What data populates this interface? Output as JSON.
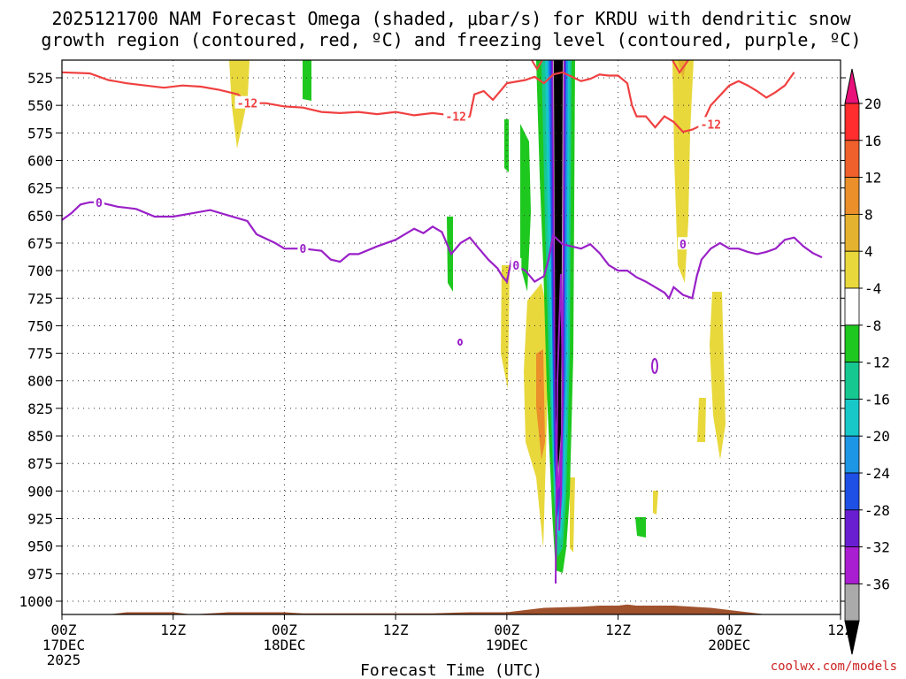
{
  "chart_data": {
    "type": "time-pressure contour/shaded",
    "title": [
      "2025121700 NAM Forecast Omega (shaded, μbar/s) for KRDU with dendritic snow",
      "growth region (contoured, red, ºC) and freezing level (contoured, purple, ºC)"
    ],
    "xlabel": "Forecast Time (UTC)",
    "credit": "coolwx.com/models",
    "x_ticks": [
      {
        "h": 0,
        "l1": "00Z",
        "l2": "17DEC",
        "l3": "2025"
      },
      {
        "h": 12,
        "l1": "12Z",
        "l2": "",
        "l3": ""
      },
      {
        "h": 24,
        "l1": "00Z",
        "l2": "18DEC",
        "l3": ""
      },
      {
        "h": 36,
        "l1": "12Z",
        "l2": "",
        "l3": ""
      },
      {
        "h": 48,
        "l1": "00Z",
        "l2": "19DEC",
        "l3": ""
      },
      {
        "h": 60,
        "l1": "12Z",
        "l2": "",
        "l3": ""
      },
      {
        "h": 72,
        "l1": "00Z",
        "l2": "20DEC",
        "l3": ""
      },
      {
        "h": 84,
        "l1": "12Z",
        "l2": "",
        "l3": ""
      }
    ],
    "y_ticks": [
      525,
      550,
      575,
      600,
      625,
      650,
      675,
      700,
      725,
      750,
      775,
      800,
      825,
      850,
      875,
      900,
      925,
      950,
      975,
      1000
    ],
    "colorbar": {
      "labels": [
        "20",
        "16",
        "12",
        "8",
        "4",
        "-4",
        "-8",
        "-12",
        "-16",
        "-20",
        "-24",
        "-28",
        "-32",
        "-36"
      ],
      "colors": [
        "#ff2d2d",
        "#f0602c",
        "#ea8f2a",
        "#e4b22e",
        "#e8d83c",
        "#ffffff",
        "#1ec81e",
        "#16c890",
        "#18c8c8",
        "#1e96e6",
        "#1e50e6",
        "#6a1ed2",
        "#aa1ed2",
        "#aaaaaa"
      ],
      "top_color": "#e8127a",
      "bottom_color": "#000000"
    },
    "contour_labels": {
      "dgz": "-12",
      "freezing": "0"
    },
    "dgz_line": [
      [
        0,
        520
      ],
      [
        3,
        521
      ],
      [
        5,
        527
      ],
      [
        7,
        530
      ],
      [
        9,
        532
      ],
      [
        11,
        534
      ],
      [
        13,
        532
      ],
      [
        15,
        533
      ],
      [
        17,
        536
      ],
      [
        19,
        540
      ],
      [
        20,
        548
      ],
      [
        22,
        548
      ],
      [
        24,
        551
      ],
      [
        26,
        552
      ],
      [
        28,
        556
      ],
      [
        30,
        557
      ],
      [
        32,
        556
      ],
      [
        34,
        558
      ],
      [
        36,
        556
      ],
      [
        38,
        559
      ],
      [
        40,
        557
      ],
      [
        42,
        559
      ],
      [
        43,
        563
      ],
      [
        44,
        560
      ],
      [
        44.5,
        540
      ],
      [
        45.5,
        537
      ],
      [
        46.5,
        545
      ],
      [
        47,
        540
      ],
      [
        48,
        530
      ],
      [
        50,
        527
      ],
      [
        51,
        524
      ],
      [
        52,
        530
      ],
      [
        53,
        522
      ],
      [
        54,
        520
      ],
      [
        56,
        528
      ],
      [
        57,
        526
      ],
      [
        58,
        522
      ],
      [
        59,
        523
      ],
      [
        60,
        523
      ],
      [
        61,
        530
      ],
      [
        61.5,
        550
      ],
      [
        62,
        560
      ],
      [
        63,
        560
      ],
      [
        64,
        570
      ],
      [
        65,
        560
      ],
      [
        66,
        565
      ],
      [
        67,
        574
      ],
      [
        68,
        572
      ],
      [
        69,
        568
      ],
      [
        70,
        550
      ],
      [
        72,
        532
      ],
      [
        73,
        528
      ],
      [
        74,
        532
      ],
      [
        75,
        537
      ],
      [
        76,
        543
      ],
      [
        77,
        538
      ],
      [
        78,
        532
      ],
      [
        79,
        520
      ]
    ],
    "frz_line": [
      [
        0,
        654
      ],
      [
        1,
        648
      ],
      [
        2,
        640
      ],
      [
        3,
        638
      ],
      [
        4,
        638
      ],
      [
        6,
        642
      ],
      [
        8,
        644
      ],
      [
        10,
        651
      ],
      [
        12,
        651
      ],
      [
        14,
        648
      ],
      [
        16,
        645
      ],
      [
        18,
        650
      ],
      [
        20,
        655
      ],
      [
        21,
        667
      ],
      [
        23,
        675
      ],
      [
        24,
        680
      ],
      [
        26,
        680
      ],
      [
        28,
        682
      ],
      [
        29,
        690
      ],
      [
        30,
        692
      ],
      [
        31,
        685
      ],
      [
        32,
        685
      ],
      [
        34,
        678
      ],
      [
        36,
        672
      ],
      [
        38,
        662
      ],
      [
        39,
        666
      ],
      [
        40,
        660
      ],
      [
        41,
        665
      ],
      [
        42,
        685
      ],
      [
        43,
        675
      ],
      [
        44,
        670
      ],
      [
        45,
        680
      ],
      [
        46,
        690
      ],
      [
        47,
        698
      ],
      [
        47.5,
        705
      ],
      [
        48,
        710
      ],
      [
        48.5,
        690
      ],
      [
        49,
        696
      ],
      [
        50,
        700
      ],
      [
        51,
        710
      ],
      [
        52,
        705
      ],
      [
        52.5,
        690
      ],
      [
        53,
        668
      ],
      [
        54,
        676
      ],
      [
        55,
        678
      ],
      [
        56,
        680
      ],
      [
        57,
        676
      ],
      [
        58,
        684
      ],
      [
        59,
        695
      ],
      [
        60,
        700
      ],
      [
        61,
        700
      ],
      [
        62,
        706
      ],
      [
        63,
        710
      ],
      [
        64,
        715
      ],
      [
        65,
        720
      ],
      [
        65.5,
        725
      ],
      [
        66,
        715
      ],
      [
        67,
        722
      ],
      [
        68,
        725
      ],
      [
        68.5,
        705
      ],
      [
        69,
        690
      ],
      [
        70,
        680
      ],
      [
        71,
        675
      ],
      [
        72,
        680
      ],
      [
        73,
        680
      ],
      [
        74,
        683
      ],
      [
        75,
        685
      ],
      [
        76,
        683
      ],
      [
        77,
        680
      ],
      [
        78,
        672
      ],
      [
        79,
        670
      ],
      [
        80,
        678
      ],
      [
        81,
        684
      ],
      [
        82,
        688
      ]
    ],
    "terrain_top": [
      [
        0,
        1012
      ],
      [
        5,
        1012
      ],
      [
        7,
        1010
      ],
      [
        12,
        1010
      ],
      [
        14,
        1012
      ],
      [
        16,
        1011
      ],
      [
        18,
        1010
      ],
      [
        24,
        1010
      ],
      [
        26,
        1011
      ],
      [
        34,
        1011
      ],
      [
        40,
        1011
      ],
      [
        44,
        1010
      ],
      [
        48,
        1010
      ],
      [
        50,
        1008
      ],
      [
        52,
        1006
      ],
      [
        56,
        1005
      ],
      [
        58,
        1004
      ],
      [
        60,
        1004
      ],
      [
        61,
        1003
      ],
      [
        62,
        1004
      ],
      [
        66,
        1004
      ],
      [
        70,
        1006
      ],
      [
        72,
        1008
      ],
      [
        74,
        1010
      ],
      [
        76,
        1012
      ],
      [
        80,
        1012
      ],
      [
        84,
        1012
      ]
    ]
  }
}
